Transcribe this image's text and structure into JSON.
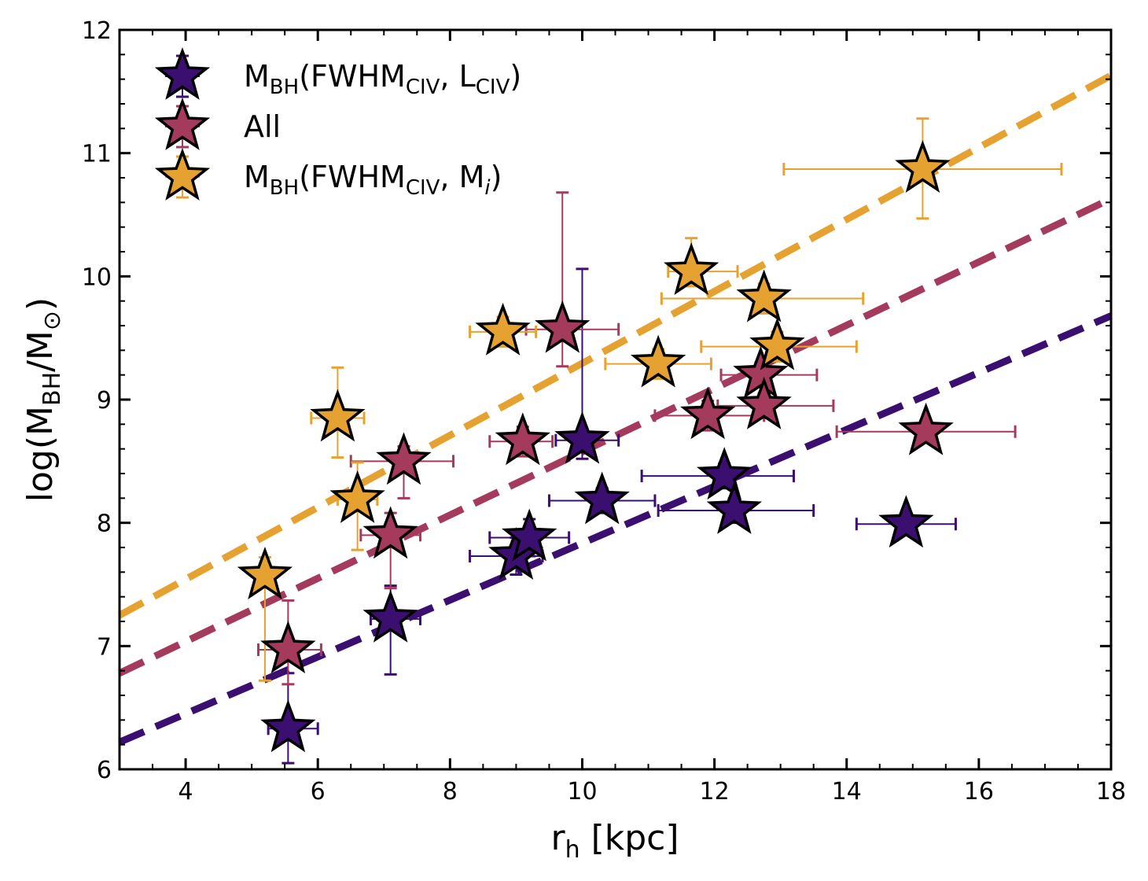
{
  "chart_data": {
    "type": "scatter",
    "xlabel": "r_h [kpc]",
    "ylabel": "log(M_BH/M_⊙)",
    "xlim": [
      3,
      18
    ],
    "ylim": [
      6,
      12
    ],
    "xticks": [
      "4",
      "6",
      "8",
      "10",
      "12",
      "14",
      "16",
      "18"
    ],
    "yticks": [
      "6",
      "7",
      "8",
      "9",
      "10",
      "11",
      "12"
    ],
    "grid": false,
    "legend_position": "top-left",
    "series": [
      {
        "name": "M_BH(FWHM_CIV, L_CIV)",
        "color": "#3b0f6f",
        "marker": "star",
        "fit_line": {
          "x": [
            3,
            18
          ],
          "y": [
            6.22,
            9.68
          ]
        },
        "points": [
          {
            "x": 5.55,
            "y": 6.33,
            "xerr": [
              0.3,
              0.45
            ],
            "yerr": [
              0.28,
              0.45
            ]
          },
          {
            "x": 7.1,
            "y": 7.22,
            "xerr": [
              0.3,
              0.45
            ],
            "yerr": [
              0.45,
              0.27
            ]
          },
          {
            "x": 9.0,
            "y": 7.73,
            "xerr": [
              0.7,
              0.4
            ],
            "yerr": [
              0.15,
              0.15
            ]
          },
          {
            "x": 9.2,
            "y": 7.88,
            "xerr": [
              0.6,
              0.6
            ],
            "yerr": [
              0.15,
              0.15
            ]
          },
          {
            "x": 10.0,
            "y": 8.67,
            "xerr": [
              0.4,
              0.55
            ],
            "yerr": [
              0.15,
              1.39
            ]
          },
          {
            "x": 10.3,
            "y": 8.18,
            "xerr": [
              0.8,
              0.8
            ],
            "yerr": [
              0.1,
              0.1
            ]
          },
          {
            "x": 12.15,
            "y": 8.38,
            "xerr": [
              1.25,
              1.05
            ],
            "yerr": [
              0.1,
              0.1
            ]
          },
          {
            "x": 12.3,
            "y": 8.1,
            "xerr": [
              1.15,
              1.2
            ],
            "yerr": [
              0.1,
              0.1
            ]
          },
          {
            "x": 14.9,
            "y": 7.99,
            "xerr": [
              0.75,
              0.75
            ],
            "yerr": [
              0.05,
              0.05
            ]
          }
        ]
      },
      {
        "name": "All",
        "color": "#a43a5c",
        "marker": "star",
        "fit_line": {
          "x": [
            3,
            18
          ],
          "y": [
            6.78,
            10.63
          ]
        },
        "points": [
          {
            "x": 5.55,
            "y": 6.97,
            "xerr": [
              0.45,
              0.5
            ],
            "yerr": [
              0.28,
              0.4
            ]
          },
          {
            "x": 7.1,
            "y": 7.9,
            "xerr": [
              0.45,
              0.45
            ],
            "yerr": [
              0.43,
              0.18
            ]
          },
          {
            "x": 7.3,
            "y": 8.5,
            "xerr": [
              0.8,
              0.75
            ],
            "yerr": [
              0.3,
              0.12
            ]
          },
          {
            "x": 9.1,
            "y": 8.66,
            "xerr": [
              0.5,
              0.45
            ],
            "yerr": [
              0.12,
              0.12
            ]
          },
          {
            "x": 9.7,
            "y": 9.57,
            "xerr": [
              0.55,
              0.85
            ],
            "yerr": [
              0.3,
              1.11
            ]
          },
          {
            "x": 11.9,
            "y": 8.87,
            "xerr": [
              0.8,
              0.85
            ],
            "yerr": [
              0.12,
              0.12
            ]
          },
          {
            "x": 12.7,
            "y": 9.2,
            "xerr": [
              0.6,
              0.85
            ],
            "yerr": [
              0.1,
              0.1
            ]
          },
          {
            "x": 12.75,
            "y": 8.95,
            "xerr": [
              0.7,
              1.05
            ],
            "yerr": [
              0.1,
              0.1
            ]
          },
          {
            "x": 15.2,
            "y": 8.74,
            "xerr": [
              1.35,
              1.35
            ],
            "yerr": [
              0.05,
              0.05
            ]
          }
        ]
      },
      {
        "name": "M_BH(FWHM_CIV, M_i)",
        "color": "#e6a230",
        "marker": "star",
        "fit_line": {
          "x": [
            3,
            18
          ],
          "y": [
            7.25,
            11.63
          ]
        },
        "points": [
          {
            "x": 5.2,
            "y": 7.57,
            "xerr": [
              0.15,
              0.15
            ],
            "yerr": [
              0.85,
              0.15
            ]
          },
          {
            "x": 6.3,
            "y": 8.85,
            "xerr": [
              0.4,
              0.4
            ],
            "yerr": [
              0.32,
              0.41
            ]
          },
          {
            "x": 6.6,
            "y": 8.19,
            "xerr": [
              0.3,
              0.3
            ],
            "yerr": [
              0.41,
              0.3
            ]
          },
          {
            "x": 8.8,
            "y": 9.55,
            "xerr": [
              0.5,
              0.5
            ],
            "yerr": [
              0.12,
              0.12
            ]
          },
          {
            "x": 11.15,
            "y": 9.29,
            "xerr": [
              0.8,
              0.8
            ],
            "yerr": [
              0.12,
              0.12
            ]
          },
          {
            "x": 11.65,
            "y": 10.04,
            "xerr": [
              0.35,
              0.7
            ],
            "yerr": [
              0.12,
              0.27
            ]
          },
          {
            "x": 12.75,
            "y": 9.82,
            "xerr": [
              1.55,
              1.5
            ],
            "yerr": [
              0.12,
              0.12
            ]
          },
          {
            "x": 12.95,
            "y": 9.43,
            "xerr": [
              1.15,
              1.2
            ],
            "yerr": [
              0.12,
              0.12
            ]
          },
          {
            "x": 15.15,
            "y": 10.87,
            "xerr": [
              2.1,
              2.1
            ],
            "yerr": [
              0.4,
              0.41
            ]
          }
        ]
      }
    ],
    "legend": [
      {
        "series": 0,
        "main": "M",
        "sub": "BH",
        "paren_open": "(FWHM",
        "sub2": "CIV",
        "mid": ", L",
        "sub3": "CIV",
        "close": ")"
      },
      {
        "series": 1,
        "main": "All"
      },
      {
        "series": 2,
        "main": "M",
        "sub": "BH",
        "paren_open": "(FWHM",
        "sub2": "CIV",
        "mid": ", M",
        "italic": "i",
        "close": ")"
      }
    ],
    "labels": {
      "x_main": "r",
      "x_sub": "h",
      "x_rest": " [kpc]",
      "y_prefix": "log(M",
      "y_sub1": "BH",
      "y_mid": "/M",
      "y_sub2": "⊙",
      "y_close": ")"
    }
  }
}
